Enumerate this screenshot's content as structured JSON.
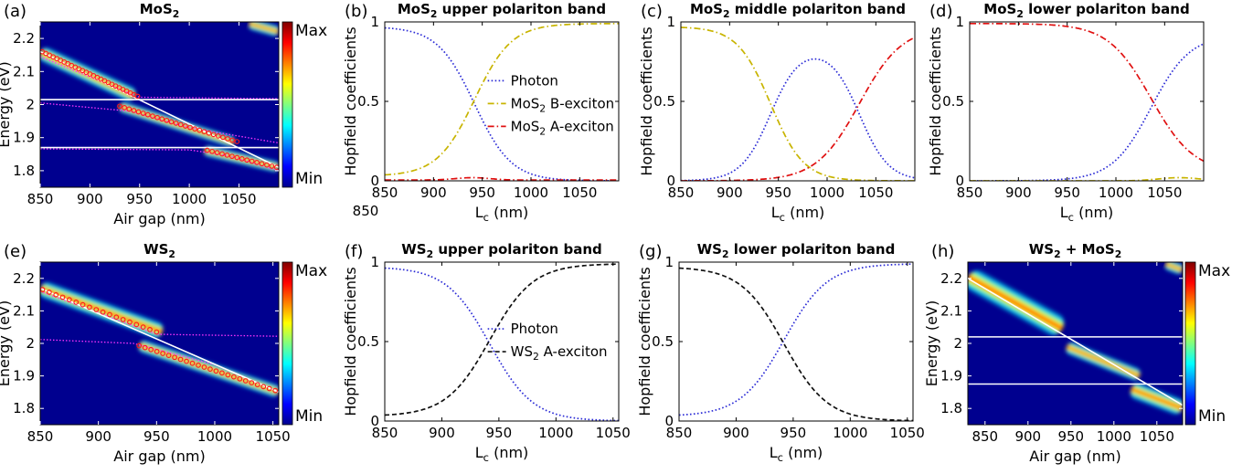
{
  "chart_data": [
    {
      "id": "a",
      "type": "heatmap",
      "panel_label": "(a)",
      "title": "MoS",
      "title_sub": "2",
      "xlabel": "Air gap (nm)",
      "ylabel": "Energy (eV)",
      "xlim": [
        850,
        1090
      ],
      "ylim": [
        1.75,
        2.25
      ],
      "xticks": [
        "850",
        "900",
        "950",
        "1000",
        "1050"
      ],
      "xtick_values": [
        850,
        900,
        950,
        1000,
        1050
      ],
      "yticks": [
        "2.2",
        "2.1",
        "2",
        "1.9",
        "1.8"
      ],
      "ytick_values": [
        2.2,
        2.1,
        2.0,
        1.9,
        1.8
      ],
      "colorbar": {
        "max": "Max",
        "min": "Min"
      },
      "white_lines": [
        {
          "x": [
            850,
            1090
          ],
          "y": [
            2.16,
            1.81
          ]
        },
        {
          "x": [
            850,
            1090
          ],
          "y": [
            2.015,
            2.015
          ]
        },
        {
          "x": [
            850,
            1090
          ],
          "y": [
            1.87,
            1.87
          ]
        }
      ],
      "dotted_lines": [
        {
          "x": [
            850,
            950,
            1090
          ],
          "y": [
            2.145,
            2.022,
            2.018
          ]
        },
        {
          "x": [
            850,
            940,
            1000,
            1090
          ],
          "y": [
            2.005,
            1.98,
            1.93,
            1.884
          ]
        },
        {
          "x": [
            850,
            1000,
            1040,
            1090
          ],
          "y": [
            1.866,
            1.863,
            1.845,
            1.8
          ]
        }
      ],
      "bands": [
        {
          "x": [
            850,
            945
          ],
          "y": [
            2.158,
            2.025
          ],
          "w": 0.016
        },
        {
          "x": [
            930,
            1045
          ],
          "y": [
            1.995,
            1.885
          ],
          "w": 0.012
        },
        {
          "x": [
            1015,
            1090
          ],
          "y": [
            1.862,
            1.81
          ],
          "w": 0.012
        },
        {
          "x": [
            1060,
            1090
          ],
          "y": [
            2.245,
            2.22
          ],
          "w": 0.012
        }
      ],
      "markers": [
        {
          "x_range": [
            852,
            948
          ],
          "y_range": [
            2.16,
            2.025
          ],
          "n": 27
        },
        {
          "x_range": [
            930,
            1048
          ],
          "y_range": [
            1.995,
            1.888
          ],
          "n": 26
        },
        {
          "x_range": [
            1018,
            1088
          ],
          "y_range": [
            1.862,
            1.81
          ],
          "n": 15
        }
      ]
    },
    {
      "id": "b",
      "type": "line",
      "panel_label": "(b)",
      "title": "MoS",
      "title_sub": "2",
      "title_rest": " upper polariton band",
      "xlabel": "L",
      "xlabel_sub": "c",
      "xlabel_rest": " (nm)",
      "ylabel": "Hopfield coefficients",
      "xlim": [
        850,
        1090
      ],
      "ylim": [
        0,
        1
      ],
      "xticks": [
        "850",
        "900",
        "950",
        "1000",
        "1050"
      ],
      "xtick_values": [
        850,
        900,
        950,
        1000,
        1050
      ],
      "yticks": [
        "1",
        "0.5",
        "0"
      ],
      "ytick_values": [
        1,
        0.5,
        0
      ],
      "extra_label": "850",
      "series": [
        {
          "name": "Photon",
          "color": "#2b2bd6",
          "dash": "dot",
          "curve": "sigdown",
          "c": 942,
          "w": 19,
          "lo": 0.0,
          "hi": 0.97
        },
        {
          "name": "MoS|2| B-exciton",
          "color": "#c8b400",
          "dash": "dashdot",
          "curve": "sigup",
          "c": 942,
          "w": 19,
          "lo": 0.03,
          "hi": 0.99
        },
        {
          "name": "MoS|2| A-exciton",
          "color": "#e01010",
          "dash": "dashdot",
          "curve": "bump",
          "c": 940,
          "w": 25,
          "lo": 0.005,
          "hi": 0.02
        }
      ],
      "legend_pos": "center"
    },
    {
      "id": "c",
      "type": "line",
      "panel_label": "(c)",
      "title": "MoS",
      "title_sub": "2",
      "title_rest": " middle polariton band",
      "xlabel": "L",
      "xlabel_sub": "c",
      "xlabel_rest": " (nm)",
      "ylabel": "Hopfield coefficients",
      "xlim": [
        850,
        1090
      ],
      "ylim": [
        0,
        1
      ],
      "xticks": [
        "850",
        "900",
        "950",
        "1000",
        "1050"
      ],
      "xtick_values": [
        850,
        900,
        950,
        1000,
        1050
      ],
      "yticks": [
        "1",
        "0.5",
        "0"
      ],
      "ytick_values": [
        1,
        0.5,
        0
      ],
      "series": [
        {
          "name": "",
          "color": "#2b2bd6",
          "dash": "dot",
          "curve": "hump",
          "c1": 942,
          "c2": 1033,
          "w": 15,
          "lo": 0.0,
          "hi": 0.8
        },
        {
          "name": "",
          "color": "#c8b400",
          "dash": "dashdot",
          "curve": "sigdown",
          "c": 942,
          "w": 17,
          "lo": 0.0,
          "hi": 0.97
        },
        {
          "name": "",
          "color": "#e01010",
          "dash": "dashdot",
          "curve": "sigup",
          "c": 1033,
          "w": 22,
          "lo": 0.0,
          "hi": 0.97
        }
      ]
    },
    {
      "id": "d",
      "type": "line",
      "panel_label": "(d)",
      "title": "MoS",
      "title_sub": "2",
      "title_rest": " lower polariton band",
      "xlabel": "L",
      "xlabel_sub": "c",
      "xlabel_rest": " (nm)",
      "ylabel": "Hopfield coefficients",
      "xlim": [
        850,
        1090
      ],
      "ylim": [
        0,
        1
      ],
      "xticks": [
        "850",
        "900",
        "950",
        "1000",
        "1050"
      ],
      "xtick_values": [
        850,
        900,
        950,
        1000,
        1050
      ],
      "yticks": [
        "1",
        "0.5",
        "0"
      ],
      "ytick_values": [
        1,
        0.5,
        0
      ],
      "series": [
        {
          "name": "",
          "color": "#2b2bd6",
          "dash": "dot",
          "curve": "sigup",
          "c": 1036,
          "w": 20,
          "lo": 0.0,
          "hi": 0.92
        },
        {
          "name": "",
          "color": "#c8b400",
          "dash": "dashdot",
          "curve": "bump",
          "c": 1065,
          "w": 30,
          "lo": 0.0,
          "hi": 0.02
        },
        {
          "name": "",
          "color": "#e01010",
          "dash": "dashdot",
          "curve": "sigdown",
          "c": 1036,
          "w": 22,
          "lo": 0.05,
          "hi": 0.99
        }
      ]
    },
    {
      "id": "e",
      "type": "heatmap",
      "panel_label": "(e)",
      "title": "WS",
      "title_sub": "2",
      "xlabel": "Air gap (nm)",
      "ylabel": "Energy (eV)",
      "xlim": [
        850,
        1055
      ],
      "ylim": [
        1.75,
        2.25
      ],
      "xticks": [
        "850",
        "900",
        "950",
        "1000",
        "1050"
      ],
      "xtick_values": [
        850,
        900,
        950,
        1000,
        1050
      ],
      "yticks": [
        "2.2",
        "2.1",
        "2",
        "1.9",
        "1.8"
      ],
      "ytick_values": [
        2.2,
        2.1,
        2.0,
        1.9,
        1.8
      ],
      "colorbar": {
        "max": "Max",
        "min": "Min"
      },
      "white_lines": [
        {
          "x": [
            850,
            1055
          ],
          "y": [
            2.17,
            1.85
          ]
        }
      ],
      "dotted_lines": [
        {
          "x": [
            850,
            950,
            1055
          ],
          "y": [
            2.16,
            2.028,
            2.022
          ]
        },
        {
          "x": [
            850,
            930,
            1000,
            1055
          ],
          "y": [
            2.012,
            2.0,
            1.935,
            1.85
          ]
        }
      ],
      "bands": [
        {
          "x": [
            850,
            955
          ],
          "y": [
            2.17,
            2.035
          ],
          "w": 0.018
        },
        {
          "x": [
            935,
            1055
          ],
          "y": [
            1.995,
            1.85
          ],
          "w": 0.014
        }
      ],
      "markers": [
        {
          "x_range": [
            852,
            950
          ],
          "y_range": [
            2.165,
            2.035
          ],
          "n": 18
        },
        {
          "x_range": [
            935,
            1052
          ],
          "y_range": [
            1.993,
            1.855
          ],
          "n": 24
        }
      ]
    },
    {
      "id": "f",
      "type": "line",
      "panel_label": "(f)",
      "title": "WS",
      "title_sub": "2",
      "title_rest": " upper polariton band",
      "xlabel": "L",
      "xlabel_sub": "c",
      "xlabel_rest": " (nm)",
      "ylabel": "Hopfield coefficients",
      "xlim": [
        850,
        1055
      ],
      "ylim": [
        0,
        1
      ],
      "xticks": [
        "850",
        "900",
        "950",
        "1000",
        "1050"
      ],
      "xtick_values": [
        850,
        900,
        950,
        1000,
        1050
      ],
      "yticks": [
        "1",
        "0.5",
        "0"
      ],
      "ytick_values": [
        1,
        0.5,
        0
      ],
      "series": [
        {
          "name": "Photon",
          "color": "#2b2bd6",
          "dash": "dot",
          "curve": "sigdown",
          "c": 942,
          "w": 19,
          "lo": 0.0,
          "hi": 0.97
        },
        {
          "name": "WS|2| A-exciton",
          "color": "#111111",
          "dash": "dash",
          "curve": "sigup",
          "c": 942,
          "w": 19,
          "lo": 0.03,
          "hi": 0.99
        }
      ],
      "legend_pos": "center"
    },
    {
      "id": "g",
      "type": "line",
      "panel_label": "(g)",
      "title": "WS",
      "title_sub": "2",
      "title_rest": " lower polariton band",
      "xlabel": "L",
      "xlabel_sub": "c",
      "xlabel_rest": " (nm)",
      "ylabel": "Hopfield coefficients",
      "xlim": [
        850,
        1055
      ],
      "ylim": [
        0,
        1
      ],
      "xticks": [
        "850",
        "900",
        "950",
        "1000",
        "1050"
      ],
      "xtick_values": [
        850,
        900,
        950,
        1000,
        1050
      ],
      "yticks": [
        "1",
        "0.5",
        "0"
      ],
      "ytick_values": [
        1,
        0.5,
        0
      ],
      "series": [
        {
          "name": "",
          "color": "#2b2bd6",
          "dash": "dot",
          "curve": "sigup",
          "c": 942,
          "w": 19,
          "lo": 0.03,
          "hi": 0.99
        },
        {
          "name": "",
          "color": "#111111",
          "dash": "dash",
          "curve": "sigdown",
          "c": 942,
          "w": 19,
          "lo": 0.0,
          "hi": 0.97
        }
      ]
    },
    {
      "id": "h",
      "type": "heatmap",
      "panel_label": "(h)",
      "title": "WS",
      "title_sub": "2",
      "title_rest": " + MoS",
      "title_sub2": "2",
      "xlabel": "Air gap (nm)",
      "ylabel": "Energy (eV)",
      "xlim": [
        830,
        1080
      ],
      "ylim": [
        1.75,
        2.25
      ],
      "xticks": [
        "850",
        "900",
        "950",
        "1000",
        "1050"
      ],
      "xtick_values": [
        850,
        900,
        950,
        1000,
        1050
      ],
      "yticks": [
        "2.2",
        "2.1",
        "2",
        "1.9",
        "1.8"
      ],
      "ytick_values": [
        2.2,
        2.1,
        2.0,
        1.9,
        1.8
      ],
      "colorbar": {
        "max": "Max",
        "min": "Min"
      },
      "white_lines": [
        {
          "x": [
            830,
            1080
          ],
          "y": [
            2.2,
            1.81
          ]
        },
        {
          "x": [
            830,
            1080
          ],
          "y": [
            2.02,
            2.02
          ]
        },
        {
          "x": [
            830,
            1080
          ],
          "y": [
            1.875,
            1.875
          ]
        }
      ],
      "dotted_lines": [],
      "bands": [
        {
          "x": [
            830,
            940
          ],
          "y": [
            2.205,
            2.045
          ],
          "w": 0.024
        },
        {
          "x": [
            945,
            1030
          ],
          "y": [
            1.99,
            1.9
          ],
          "w": 0.014
        },
        {
          "x": [
            1020,
            1080
          ],
          "y": [
            1.86,
            1.8
          ],
          "w": 0.018
        },
        {
          "x": [
            1060,
            1080
          ],
          "y": [
            2.245,
            2.225
          ],
          "w": 0.012
        }
      ],
      "markers": []
    }
  ]
}
